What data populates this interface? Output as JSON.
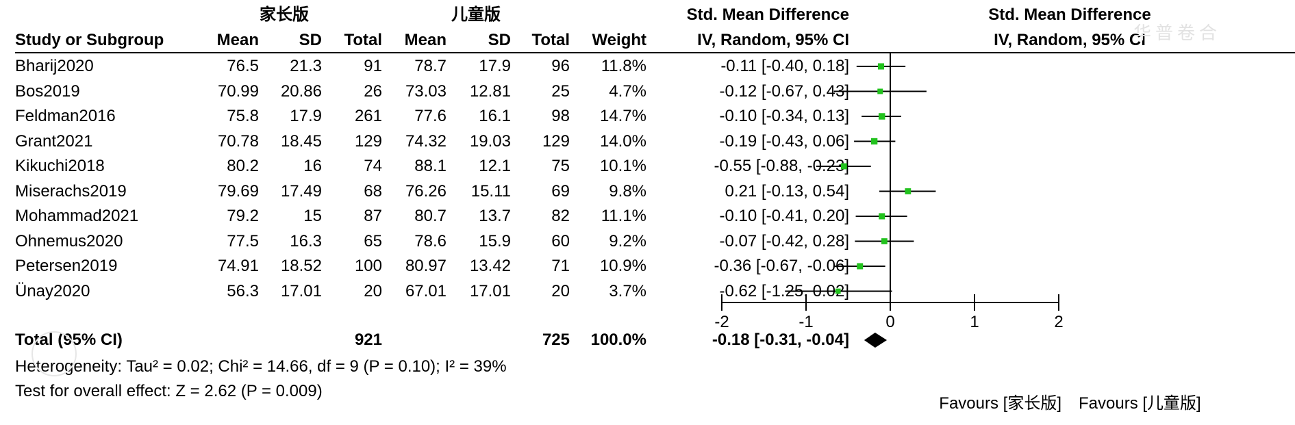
{
  "headers": {
    "group1": "家长版",
    "group2": "儿童版",
    "smd_title": "Std. Mean Difference",
    "smd_method": "IV, Random, 95% CI",
    "plot_title": "Std. Mean Difference",
    "plot_method": "IV, Random, 95% CI",
    "study": "Study or Subgroup",
    "mean1": "Mean",
    "sd1": "SD",
    "total1": "Total",
    "mean2": "Mean",
    "sd2": "SD",
    "total2": "Total",
    "weight": "Weight"
  },
  "studies": [
    {
      "name": "Bharij2020",
      "m1": "76.5",
      "sd1": "21.3",
      "n1": "91",
      "m2": "78.7",
      "sd2": "17.9",
      "n2": "96",
      "weight": "11.8%",
      "ci": "-0.11 [-0.40, 0.18]"
    },
    {
      "name": "Bos2019",
      "m1": "70.99",
      "sd1": "20.86",
      "n1": "26",
      "m2": "73.03",
      "sd2": "12.81",
      "n2": "25",
      "weight": "4.7%",
      "ci": "-0.12 [-0.67, 0.43]"
    },
    {
      "name": "Feldman2016",
      "m1": "75.8",
      "sd1": "17.9",
      "n1": "261",
      "m2": "77.6",
      "sd2": "16.1",
      "n2": "98",
      "weight": "14.7%",
      "ci": "-0.10 [-0.34, 0.13]"
    },
    {
      "name": "Grant2021",
      "m1": "70.78",
      "sd1": "18.45",
      "n1": "129",
      "m2": "74.32",
      "sd2": "19.03",
      "n2": "129",
      "weight": "14.0%",
      "ci": "-0.19 [-0.43, 0.06]"
    },
    {
      "name": "Kikuchi2018",
      "m1": "80.2",
      "sd1": "16",
      "n1": "74",
      "m2": "88.1",
      "sd2": "12.1",
      "n2": "75",
      "weight": "10.1%",
      "ci": "-0.55 [-0.88, -0.23]"
    },
    {
      "name": "Miserachs2019",
      "m1": "79.69",
      "sd1": "17.49",
      "n1": "68",
      "m2": "76.26",
      "sd2": "15.11",
      "n2": "69",
      "weight": "9.8%",
      "ci": "0.21 [-0.13, 0.54]"
    },
    {
      "name": "Mohammad2021",
      "m1": "79.2",
      "sd1": "15",
      "n1": "87",
      "m2": "80.7",
      "sd2": "13.7",
      "n2": "82",
      "weight": "11.1%",
      "ci": "-0.10 [-0.41, 0.20]"
    },
    {
      "name": "Ohnemus2020",
      "m1": "77.5",
      "sd1": "16.3",
      "n1": "65",
      "m2": "78.6",
      "sd2": "15.9",
      "n2": "60",
      "weight": "9.2%",
      "ci": "-0.07 [-0.42, 0.28]"
    },
    {
      "name": "Petersen2019",
      "m1": "74.91",
      "sd1": "18.52",
      "n1": "100",
      "m2": "80.97",
      "sd2": "13.42",
      "n2": "71",
      "weight": "10.9%",
      "ci": "-0.36 [-0.67, -0.06]"
    },
    {
      "name": "Ünay2020",
      "m1": "56.3",
      "sd1": "17.01",
      "n1": "20",
      "m2": "67.01",
      "sd2": "17.01",
      "n2": "20",
      "weight": "3.7%",
      "ci": "-0.62 [-1.25, 0.02]"
    }
  ],
  "total": {
    "label": "Total (95% CI)",
    "n1": "921",
    "n2": "725",
    "weight": "100.0%",
    "ci": "-0.18 [-0.31, -0.04]"
  },
  "heterogeneity": "Heterogeneity: Tau² = 0.02; Chi² = 14.66, df = 9 (P = 0.10); I² = 39%",
  "overall_test": "Test for overall effect: Z = 2.62 (P = 0.009)",
  "favours_left": "Favours [家长版]",
  "favours_right": "Favours [儿童版]",
  "watermark": "华普卷合",
  "colors": {
    "marker": "#22c21e",
    "line": "#000000",
    "diamond": "#000000"
  },
  "chart_data": {
    "type": "forest",
    "xlim": [
      -2,
      2
    ],
    "ticks": [
      -2,
      -1,
      0,
      1,
      2
    ],
    "studies": [
      {
        "name": "Bharij2020",
        "est": -0.11,
        "lo": -0.4,
        "hi": 0.18,
        "weight": 11.8
      },
      {
        "name": "Bos2019",
        "est": -0.12,
        "lo": -0.67,
        "hi": 0.43,
        "weight": 4.7
      },
      {
        "name": "Feldman2016",
        "est": -0.1,
        "lo": -0.34,
        "hi": 0.13,
        "weight": 14.7
      },
      {
        "name": "Grant2021",
        "est": -0.19,
        "lo": -0.43,
        "hi": 0.06,
        "weight": 14.0
      },
      {
        "name": "Kikuchi2018",
        "est": -0.55,
        "lo": -0.88,
        "hi": -0.23,
        "weight": 10.1
      },
      {
        "name": "Miserachs2019",
        "est": 0.21,
        "lo": -0.13,
        "hi": 0.54,
        "weight": 9.8
      },
      {
        "name": "Mohammad2021",
        "est": -0.1,
        "lo": -0.41,
        "hi": 0.2,
        "weight": 11.1
      },
      {
        "name": "Ohnemus2020",
        "est": -0.07,
        "lo": -0.42,
        "hi": 0.28,
        "weight": 9.2
      },
      {
        "name": "Petersen2019",
        "est": -0.36,
        "lo": -0.67,
        "hi": -0.06,
        "weight": 10.9
      },
      {
        "name": "Ünay2020",
        "est": -0.62,
        "lo": -1.25,
        "hi": 0.02,
        "weight": 3.7
      }
    ],
    "pooled": {
      "est": -0.18,
      "lo": -0.31,
      "hi": -0.04
    }
  }
}
